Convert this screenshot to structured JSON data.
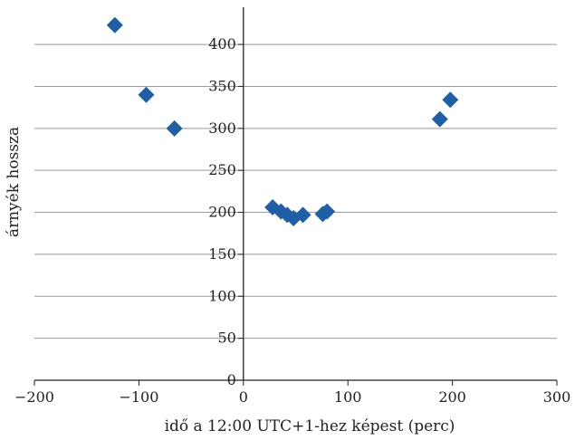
{
  "chart_data": {
    "type": "scatter",
    "title": "",
    "xlabel": "idő a 12:00 UTC+1-hez képest (perc)",
    "ylabel": "árnyék hossza",
    "xlim": [
      -200,
      300
    ],
    "ylim": [
      0,
      440
    ],
    "x_ticks": [
      "−200",
      "−100",
      "0",
      "100",
      "200",
      "300"
    ],
    "y_ticks": [
      "0",
      "50",
      "100",
      "150",
      "200",
      "250",
      "300",
      "350",
      "400"
    ],
    "grid": "horizontal",
    "marker": "diamond",
    "color": "#1f5fa6",
    "series": [
      {
        "points": [
          {
            "x": -123,
            "y": 423
          },
          {
            "x": -93,
            "y": 340
          },
          {
            "x": -66,
            "y": 300
          },
          {
            "x": 28,
            "y": 206
          },
          {
            "x": 36,
            "y": 201
          },
          {
            "x": 42,
            "y": 197
          },
          {
            "x": 48,
            "y": 193
          },
          {
            "x": 57,
            "y": 197
          },
          {
            "x": 76,
            "y": 198
          },
          {
            "x": 80,
            "y": 201
          },
          {
            "x": 188,
            "y": 311
          },
          {
            "x": 198,
            "y": 334
          }
        ]
      }
    ]
  }
}
